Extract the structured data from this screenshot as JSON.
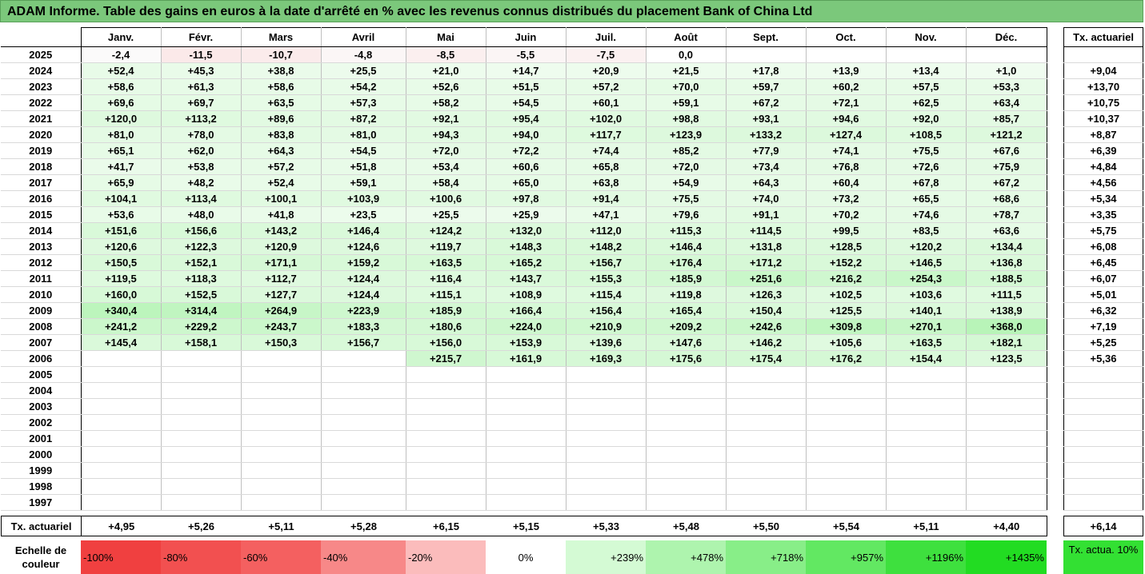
{
  "title": "ADAM Informe. Table des gains en euros à la date d'arrêté en % avec les revenus connus distribués du placement Bank of China Ltd",
  "months": [
    "Janv.",
    "Févr.",
    "Mars",
    "Avril",
    "Mai",
    "Juin",
    "Juil.",
    "Août",
    "Sept.",
    "Oct.",
    "Nov.",
    "Déc."
  ],
  "side_header": "Tx. actuariel",
  "rows": [
    {
      "year": "2025",
      "values": [
        "-2,4",
        "-11,5",
        "-10,7",
        "-4,8",
        "-8,5",
        "-5,5",
        "-7,5",
        "0,0",
        "",
        "",
        "",
        ""
      ],
      "rate": ""
    },
    {
      "year": "2024",
      "values": [
        "+52,4",
        "+45,3",
        "+38,8",
        "+25,5",
        "+21,0",
        "+14,7",
        "+20,9",
        "+21,5",
        "+17,8",
        "+13,9",
        "+13,4",
        "+1,0"
      ],
      "rate": "+9,04"
    },
    {
      "year": "2023",
      "values": [
        "+58,6",
        "+61,3",
        "+58,6",
        "+54,2",
        "+52,6",
        "+51,5",
        "+57,2",
        "+70,0",
        "+59,7",
        "+60,2",
        "+57,5",
        "+53,3"
      ],
      "rate": "+13,70"
    },
    {
      "year": "2022",
      "values": [
        "+69,6",
        "+69,7",
        "+63,5",
        "+57,3",
        "+58,2",
        "+54,5",
        "+60,1",
        "+59,1",
        "+67,2",
        "+72,1",
        "+62,5",
        "+63,4"
      ],
      "rate": "+10,75"
    },
    {
      "year": "2021",
      "values": [
        "+120,0",
        "+113,2",
        "+89,6",
        "+87,2",
        "+92,1",
        "+95,4",
        "+102,0",
        "+98,8",
        "+93,1",
        "+94,6",
        "+92,0",
        "+85,7"
      ],
      "rate": "+10,37"
    },
    {
      "year": "2020",
      "values": [
        "+81,0",
        "+78,0",
        "+83,8",
        "+81,0",
        "+94,3",
        "+94,0",
        "+117,7",
        "+123,9",
        "+133,2",
        "+127,4",
        "+108,5",
        "+121,2"
      ],
      "rate": "+8,87"
    },
    {
      "year": "2019",
      "values": [
        "+65,1",
        "+62,0",
        "+64,3",
        "+54,5",
        "+72,0",
        "+72,2",
        "+74,4",
        "+85,2",
        "+77,9",
        "+74,1",
        "+75,5",
        "+67,6"
      ],
      "rate": "+6,39"
    },
    {
      "year": "2018",
      "values": [
        "+41,7",
        "+53,8",
        "+57,2",
        "+51,8",
        "+53,4",
        "+60,6",
        "+65,8",
        "+72,0",
        "+73,4",
        "+76,8",
        "+72,6",
        "+75,9"
      ],
      "rate": "+4,84"
    },
    {
      "year": "2017",
      "values": [
        "+65,9",
        "+48,2",
        "+52,4",
        "+59,1",
        "+58,4",
        "+65,0",
        "+63,8",
        "+54,9",
        "+64,3",
        "+60,4",
        "+67,8",
        "+67,2"
      ],
      "rate": "+4,56"
    },
    {
      "year": "2016",
      "values": [
        "+104,1",
        "+113,4",
        "+100,1",
        "+103,9",
        "+100,6",
        "+97,8",
        "+91,4",
        "+75,5",
        "+74,0",
        "+73,2",
        "+65,5",
        "+68,6"
      ],
      "rate": "+5,34"
    },
    {
      "year": "2015",
      "values": [
        "+53,6",
        "+48,0",
        "+41,8",
        "+23,5",
        "+25,5",
        "+25,9",
        "+47,1",
        "+79,6",
        "+91,1",
        "+70,2",
        "+74,6",
        "+78,7"
      ],
      "rate": "+3,35"
    },
    {
      "year": "2014",
      "values": [
        "+151,6",
        "+156,6",
        "+143,2",
        "+146,4",
        "+124,2",
        "+132,0",
        "+112,0",
        "+115,3",
        "+114,5",
        "+99,5",
        "+83,5",
        "+63,6"
      ],
      "rate": "+5,75"
    },
    {
      "year": "2013",
      "values": [
        "+120,6",
        "+122,3",
        "+120,9",
        "+124,6",
        "+119,7",
        "+148,3",
        "+148,2",
        "+146,4",
        "+131,8",
        "+128,5",
        "+120,2",
        "+134,4"
      ],
      "rate": "+6,08"
    },
    {
      "year": "2012",
      "values": [
        "+150,5",
        "+152,1",
        "+171,1",
        "+159,2",
        "+163,5",
        "+165,2",
        "+156,7",
        "+176,4",
        "+171,2",
        "+152,2",
        "+146,5",
        "+136,8"
      ],
      "rate": "+6,45"
    },
    {
      "year": "2011",
      "values": [
        "+119,5",
        "+118,3",
        "+112,7",
        "+124,4",
        "+116,4",
        "+143,7",
        "+155,3",
        "+185,9",
        "+251,6",
        "+216,2",
        "+254,3",
        "+188,5"
      ],
      "rate": "+6,07"
    },
    {
      "year": "2010",
      "values": [
        "+160,0",
        "+152,5",
        "+127,7",
        "+124,4",
        "+115,1",
        "+108,9",
        "+115,4",
        "+119,8",
        "+126,3",
        "+102,5",
        "+103,6",
        "+111,5"
      ],
      "rate": "+5,01"
    },
    {
      "year": "2009",
      "values": [
        "+340,4",
        "+314,4",
        "+264,9",
        "+223,9",
        "+185,9",
        "+166,4",
        "+156,4",
        "+165,4",
        "+150,4",
        "+125,5",
        "+140,1",
        "+138,9"
      ],
      "rate": "+6,32"
    },
    {
      "year": "2008",
      "values": [
        "+241,2",
        "+229,2",
        "+243,7",
        "+183,3",
        "+180,6",
        "+224,0",
        "+210,9",
        "+209,2",
        "+242,6",
        "+309,8",
        "+270,1",
        "+368,0"
      ],
      "rate": "+7,19"
    },
    {
      "year": "2007",
      "values": [
        "+145,4",
        "+158,1",
        "+150,3",
        "+156,7",
        "+156,0",
        "+153,9",
        "+139,6",
        "+147,6",
        "+146,2",
        "+105,6",
        "+163,5",
        "+182,1"
      ],
      "rate": "+5,25"
    },
    {
      "year": "2006",
      "values": [
        "",
        "",
        "",
        "",
        "+215,7",
        "+161,9",
        "+169,3",
        "+175,6",
        "+175,4",
        "+176,2",
        "+154,4",
        "+123,5"
      ],
      "rate": "+5,36"
    },
    {
      "year": "2005",
      "values": [
        "",
        "",
        "",
        "",
        "",
        "",
        "",
        "",
        "",
        "",
        "",
        ""
      ],
      "rate": ""
    },
    {
      "year": "2004",
      "values": [
        "",
        "",
        "",
        "",
        "",
        "",
        "",
        "",
        "",
        "",
        "",
        ""
      ],
      "rate": ""
    },
    {
      "year": "2003",
      "values": [
        "",
        "",
        "",
        "",
        "",
        "",
        "",
        "",
        "",
        "",
        "",
        ""
      ],
      "rate": ""
    },
    {
      "year": "2002",
      "values": [
        "",
        "",
        "",
        "",
        "",
        "",
        "",
        "",
        "",
        "",
        "",
        ""
      ],
      "rate": ""
    },
    {
      "year": "2001",
      "values": [
        "",
        "",
        "",
        "",
        "",
        "",
        "",
        "",
        "",
        "",
        "",
        ""
      ],
      "rate": ""
    },
    {
      "year": "2000",
      "values": [
        "",
        "",
        "",
        "",
        "",
        "",
        "",
        "",
        "",
        "",
        "",
        ""
      ],
      "rate": ""
    },
    {
      "year": "1999",
      "values": [
        "",
        "",
        "",
        "",
        "",
        "",
        "",
        "",
        "",
        "",
        "",
        ""
      ],
      "rate": ""
    },
    {
      "year": "1998",
      "values": [
        "",
        "",
        "",
        "",
        "",
        "",
        "",
        "",
        "",
        "",
        "",
        ""
      ],
      "rate": ""
    },
    {
      "year": "1997",
      "values": [
        "",
        "",
        "",
        "",
        "",
        "",
        "",
        "",
        "",
        "",
        "",
        ""
      ],
      "rate": ""
    }
  ],
  "summary": {
    "label": "Tx. actuariel",
    "values": [
      "+4,95",
      "+5,26",
      "+5,11",
      "+5,28",
      "+6,15",
      "+5,15",
      "+5,33",
      "+5,48",
      "+5,50",
      "+5,54",
      "+5,11",
      "+4,40"
    ],
    "total": "+6,14"
  },
  "legend": {
    "label": "Echelle de couleur",
    "items": [
      {
        "text": "-100%",
        "color": "#f04040",
        "align": "left"
      },
      {
        "text": "-80%",
        "color": "#f25050",
        "align": "left"
      },
      {
        "text": "-60%",
        "color": "#f46060",
        "align": "left"
      },
      {
        "text": "-40%",
        "color": "#f78888",
        "align": "left"
      },
      {
        "text": "-20%",
        "color": "#fbbcbc",
        "align": "left"
      },
      {
        "text": "0%",
        "color": "#ffffff",
        "align": "center"
      },
      {
        "text": "+239%",
        "color": "#d4fad4",
        "align": "right"
      },
      {
        "text": "+478%",
        "color": "#aef4ae",
        "align": "right"
      },
      {
        "text": "+718%",
        "color": "#88ee88",
        "align": "right"
      },
      {
        "text": "+957%",
        "color": "#62e862",
        "align": "right"
      },
      {
        "text": "+1196%",
        "color": "#3ee03e",
        "align": "right"
      },
      {
        "text": "+1435%",
        "color": "#22dc22",
        "align": "right"
      }
    ],
    "side_text": "Tx. actua. 10%",
    "side_color": "#33e033"
  }
}
